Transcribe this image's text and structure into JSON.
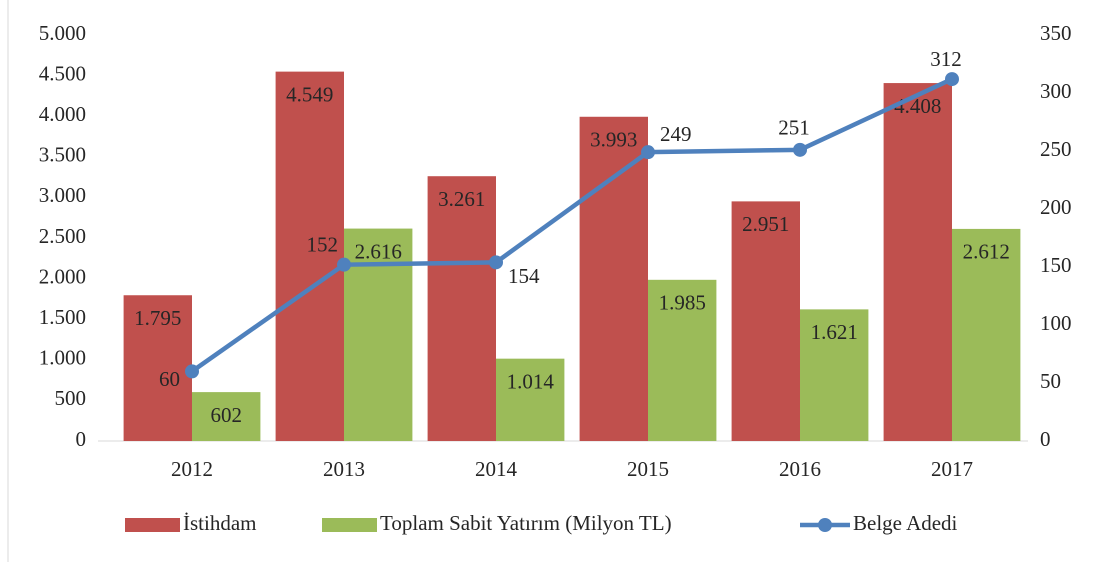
{
  "chart_data": {
    "type": "bar",
    "categories": [
      "2012",
      "2013",
      "2014",
      "2015",
      "2016",
      "2017"
    ],
    "series": [
      {
        "name": "İstihdam",
        "color": "#c0504d",
        "values": [
          1795,
          4549,
          3261,
          3993,
          2951,
          4408
        ],
        "value_labels": [
          "1.795",
          "4.549",
          "3.261",
          "3.993",
          "2.951",
          "4.408"
        ]
      },
      {
        "name": "Toplam Sabit Yatırım (Milyon TL)",
        "color": "#9bbb59",
        "values": [
          602,
          2616,
          1014,
          1985,
          1621,
          2612
        ],
        "value_labels": [
          "602",
          "2.616",
          "1.014",
          "1.985",
          "1.621",
          "2.612"
        ]
      },
      {
        "name": "Belge Adedi",
        "color": "#4f81bd",
        "type": "line",
        "axis": "y2",
        "values": [
          60,
          152,
          154,
          249,
          251,
          312
        ]
      }
    ],
    "ylim": [
      0,
      5000
    ],
    "yticks": [
      0,
      500,
      {
        "value": 1000,
        "label": "1.000"
      },
      {
        "value": 1500,
        "label": "1.500"
      },
      {
        "value": 2000,
        "label": "2.000"
      },
      {
        "value": 2500,
        "label": "2.500"
      },
      {
        "value": 3000,
        "label": "3.000"
      },
      {
        "value": 3500,
        "label": "3.500"
      },
      {
        "value": 4000,
        "label": "4.000"
      },
      {
        "value": 4500,
        "label": "4.500"
      },
      {
        "value": 5000,
        "label": "5.000"
      }
    ],
    "y2lim": [
      0,
      350
    ],
    "y2ticks": [
      0,
      50,
      100,
      150,
      200,
      250,
      300,
      350
    ],
    "grid": false,
    "legend": "bottom"
  }
}
